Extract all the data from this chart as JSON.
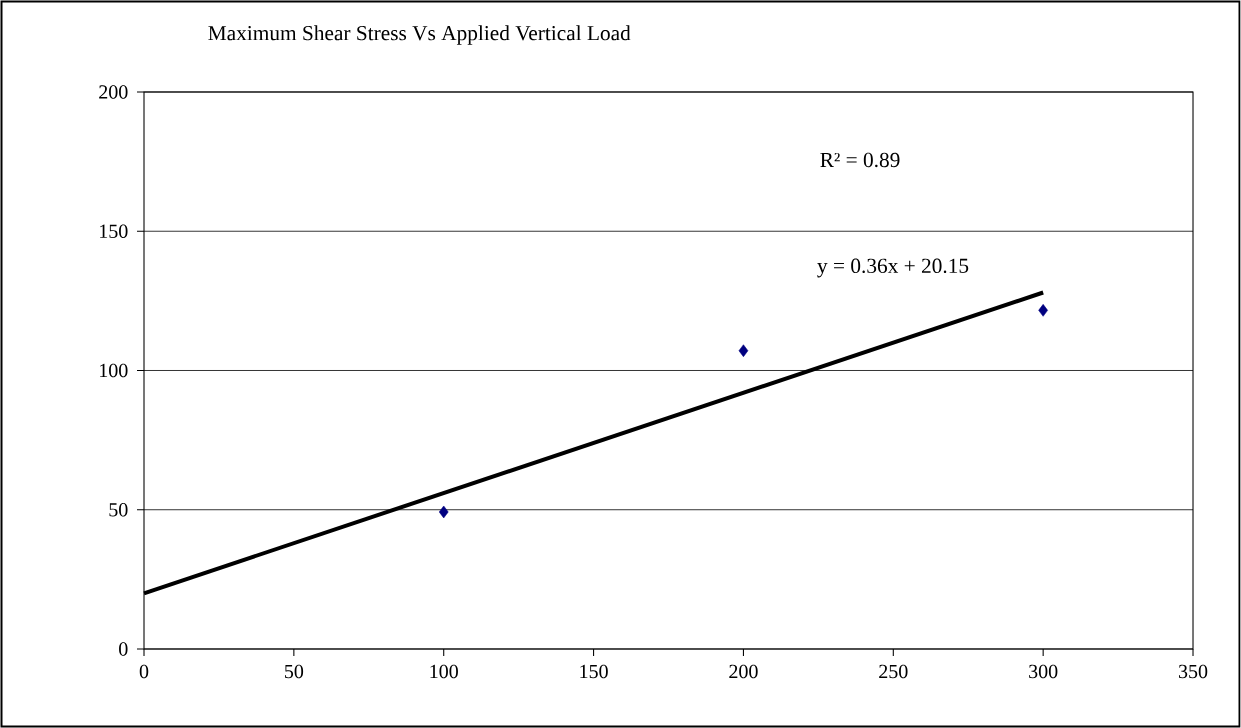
{
  "chart_data": {
    "type": "scatter",
    "title": "Maximum Shear Stress Vs Applied Vertical Load",
    "series": [
      {
        "color": "#000080",
        "x": [
          100,
          200,
          300
        ],
        "values": [
          49.2,
          107.1,
          121.6
        ]
      },
      {
        "type": "line",
        "color": "#000000",
        "marker": "none",
        "x": [
          0,
          300
        ],
        "values": [
          20,
          128
        ]
      }
    ],
    "annotations": [
      "R² = 0.89",
      "y = 0.36x + 20.15"
    ],
    "xlim": [
      0,
      350
    ],
    "xticks": [
      0,
      50,
      100,
      150,
      200,
      250,
      300,
      350
    ],
    "ylim": [
      0,
      200
    ],
    "yticks": [
      0,
      50,
      100,
      150,
      200
    ],
    "grid": "y",
    "marker": "diamond"
  }
}
